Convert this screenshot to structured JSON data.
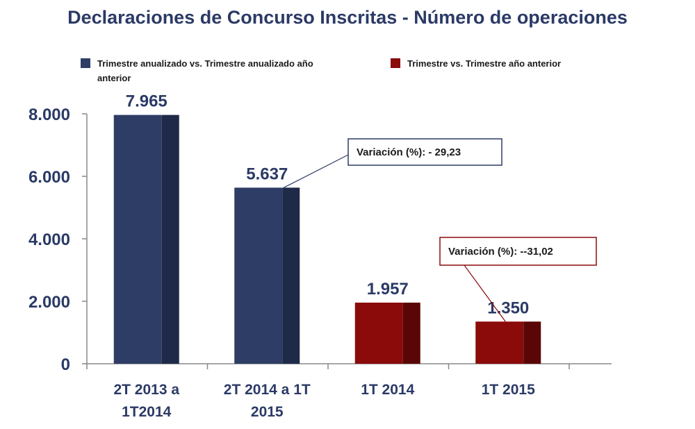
{
  "chart_data": {
    "type": "bar",
    "title": "Declaraciones de Concurso Inscritas - Número de operaciones",
    "categories": [
      [
        "2T 2013 a",
        "1T2014"
      ],
      [
        "2T 2014 a 1T",
        "2015"
      ],
      [
        "1T 2014"
      ],
      [
        "1T 2015"
      ]
    ],
    "values": [
      7965,
      5637,
      1957,
      1350
    ],
    "value_labels": [
      "7.965",
      "5.637",
      "1.957",
      "1.350"
    ],
    "series_index": [
      0,
      0,
      1,
      1
    ],
    "series": [
      {
        "name": "Trimestre anualizado vs. Trimestre anualizado año anterior",
        "legend_lines": [
          "Trimestre anualizado vs. Trimestre anualizado año",
          "anterior"
        ],
        "color": "#2e3d66",
        "shade": "#1f2a48"
      },
      {
        "name": "Trimestre vs. Trimestre año anterior",
        "legend_lines": [
          "Trimestre vs. Trimestre año anterior"
        ],
        "color": "#8b0a0a",
        "shade": "#5a0606"
      }
    ],
    "ylim": [
      0,
      8000
    ],
    "yticks": [
      0,
      2000,
      4000,
      6000,
      8000
    ],
    "ytick_labels": [
      "0",
      "2.000",
      "4.000",
      "6.000",
      "8.000"
    ],
    "xlabel": "",
    "ylabel": "",
    "annotations": [
      {
        "text": "Variación (%):  - 29,23",
        "target_bar": 1,
        "border_color": "#2b3a66"
      },
      {
        "text": "Variación (%):  --31,02",
        "target_bar": 3,
        "border_color": "#8b0a0a"
      }
    ]
  }
}
